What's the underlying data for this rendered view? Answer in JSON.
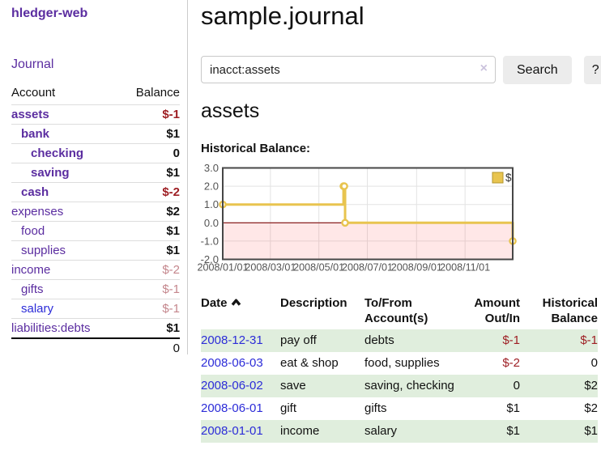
{
  "app": {
    "brand": "hledger-web"
  },
  "sidebar": {
    "nav": {
      "journal_label": "Journal"
    },
    "table": {
      "account_header": "Account",
      "balance_header": "Balance"
    },
    "accounts": [
      {
        "name": "assets",
        "indent": 0,
        "bold": true,
        "color": "purple",
        "balance": "$-1",
        "balance_class": "neg"
      },
      {
        "name": "bank",
        "indent": 1,
        "bold": true,
        "color": "purple",
        "balance": "$1",
        "balance_class": "pos"
      },
      {
        "name": "checking",
        "indent": 2,
        "bold": true,
        "color": "purple",
        "balance": "0",
        "balance_class": "pos"
      },
      {
        "name": "saving",
        "indent": 2,
        "bold": true,
        "color": "purple",
        "balance": "$1",
        "balance_class": "pos"
      },
      {
        "name": "cash",
        "indent": 1,
        "bold": true,
        "color": "purple",
        "balance": "$-2",
        "balance_class": "neg"
      },
      {
        "name": "expenses",
        "indent": 0,
        "bold": false,
        "color": "purple",
        "balance": "$2",
        "balance_class": "pos"
      },
      {
        "name": "food",
        "indent": 1,
        "bold": false,
        "color": "purple",
        "balance": "$1",
        "balance_class": "pos"
      },
      {
        "name": "supplies",
        "indent": 1,
        "bold": false,
        "color": "purple",
        "balance": "$1",
        "balance_class": "pos"
      },
      {
        "name": "income",
        "indent": 0,
        "bold": false,
        "color": "purple",
        "balance": "$-2",
        "balance_class": "negfade"
      },
      {
        "name": "gifts",
        "indent": 1,
        "bold": false,
        "color": "purple",
        "balance": "$-1",
        "balance_class": "negfade"
      },
      {
        "name": "salary",
        "indent": 1,
        "bold": false,
        "color": "blue",
        "balance": "$-1",
        "balance_class": "negfade"
      },
      {
        "name": "liabilities:debts",
        "indent": 0,
        "bold": false,
        "color": "purple",
        "balance": "$1",
        "balance_class": "pos"
      }
    ],
    "total": "0"
  },
  "header": {
    "title": "sample.journal"
  },
  "search": {
    "query": "inacct:assets",
    "clear_icon": "×",
    "button_label": "Search",
    "help_label": "?"
  },
  "content": {
    "account_heading": "assets",
    "chart_label": "Historical Balance:"
  },
  "chart_data": {
    "type": "line",
    "title": "Historical Balance:",
    "series": [
      {
        "name": "$",
        "step": true,
        "points": [
          [
            "2008-01-01",
            1
          ],
          [
            "2008-06-01",
            2
          ],
          [
            "2008-06-02",
            2
          ],
          [
            "2008-06-03",
            0
          ],
          [
            "2008-12-31",
            -1
          ]
        ]
      }
    ],
    "x_range": [
      "2008-01-01",
      "2008-12-31"
    ],
    "ylim": [
      -2,
      3
    ],
    "y_ticks": [
      3.0,
      2.0,
      1.0,
      0.0,
      -1.0,
      -2.0
    ],
    "y_tick_labels": [
      "3.0",
      "2.0",
      "1.0",
      "0.0",
      "-1.0",
      "-2.0"
    ],
    "x_tick_labels": [
      "2008/01/01",
      "2008/03/01",
      "2008/05/01",
      "2008/07/01",
      "2008/09/01",
      "2008/11/01"
    ],
    "legend": {
      "label": "$",
      "position": "top-right"
    },
    "grid": true,
    "negative_region_shaded": true
  },
  "register": {
    "columns": [
      "Date",
      "Description",
      "To/From Account(s)",
      "Amount Out/In",
      "Historical Balance"
    ],
    "rows": [
      {
        "date": "2008-12-31",
        "description": "pay off",
        "accounts": "debts",
        "amount": "$-1",
        "balance": "$-1"
      },
      {
        "date": "2008-06-03",
        "description": "eat & shop",
        "accounts": "food, supplies",
        "amount": "$-2",
        "balance": "0"
      },
      {
        "date": "2008-06-02",
        "description": "save",
        "accounts": "saving, checking",
        "amount": "0",
        "balance": "$2"
      },
      {
        "date": "2008-06-01",
        "description": "gift",
        "accounts": "gifts",
        "amount": "$1",
        "balance": "$2"
      },
      {
        "date": "2008-01-01",
        "description": "income",
        "accounts": "salary",
        "amount": "$1",
        "balance": "$1"
      }
    ]
  },
  "icons": {
    "sort_ascending": "chevron-up",
    "clear_search": "x-mark"
  },
  "colors": {
    "link_purple": "#5b2da0",
    "link_blue": "#2c2cd8",
    "negative_strong": "#9e1f24",
    "negative_faded": "#c4868c",
    "row_green": "#e0eedd",
    "chart_line_gold": "#e8c44f",
    "chart_negative_fill": "rgba(255,40,40,0.11)",
    "chart_zero_line": "#7f0a0a",
    "chart_border": "#474747",
    "chart_grid": "#e3e3e3",
    "axis_text": "#545454",
    "button_gray": "#ececec"
  }
}
